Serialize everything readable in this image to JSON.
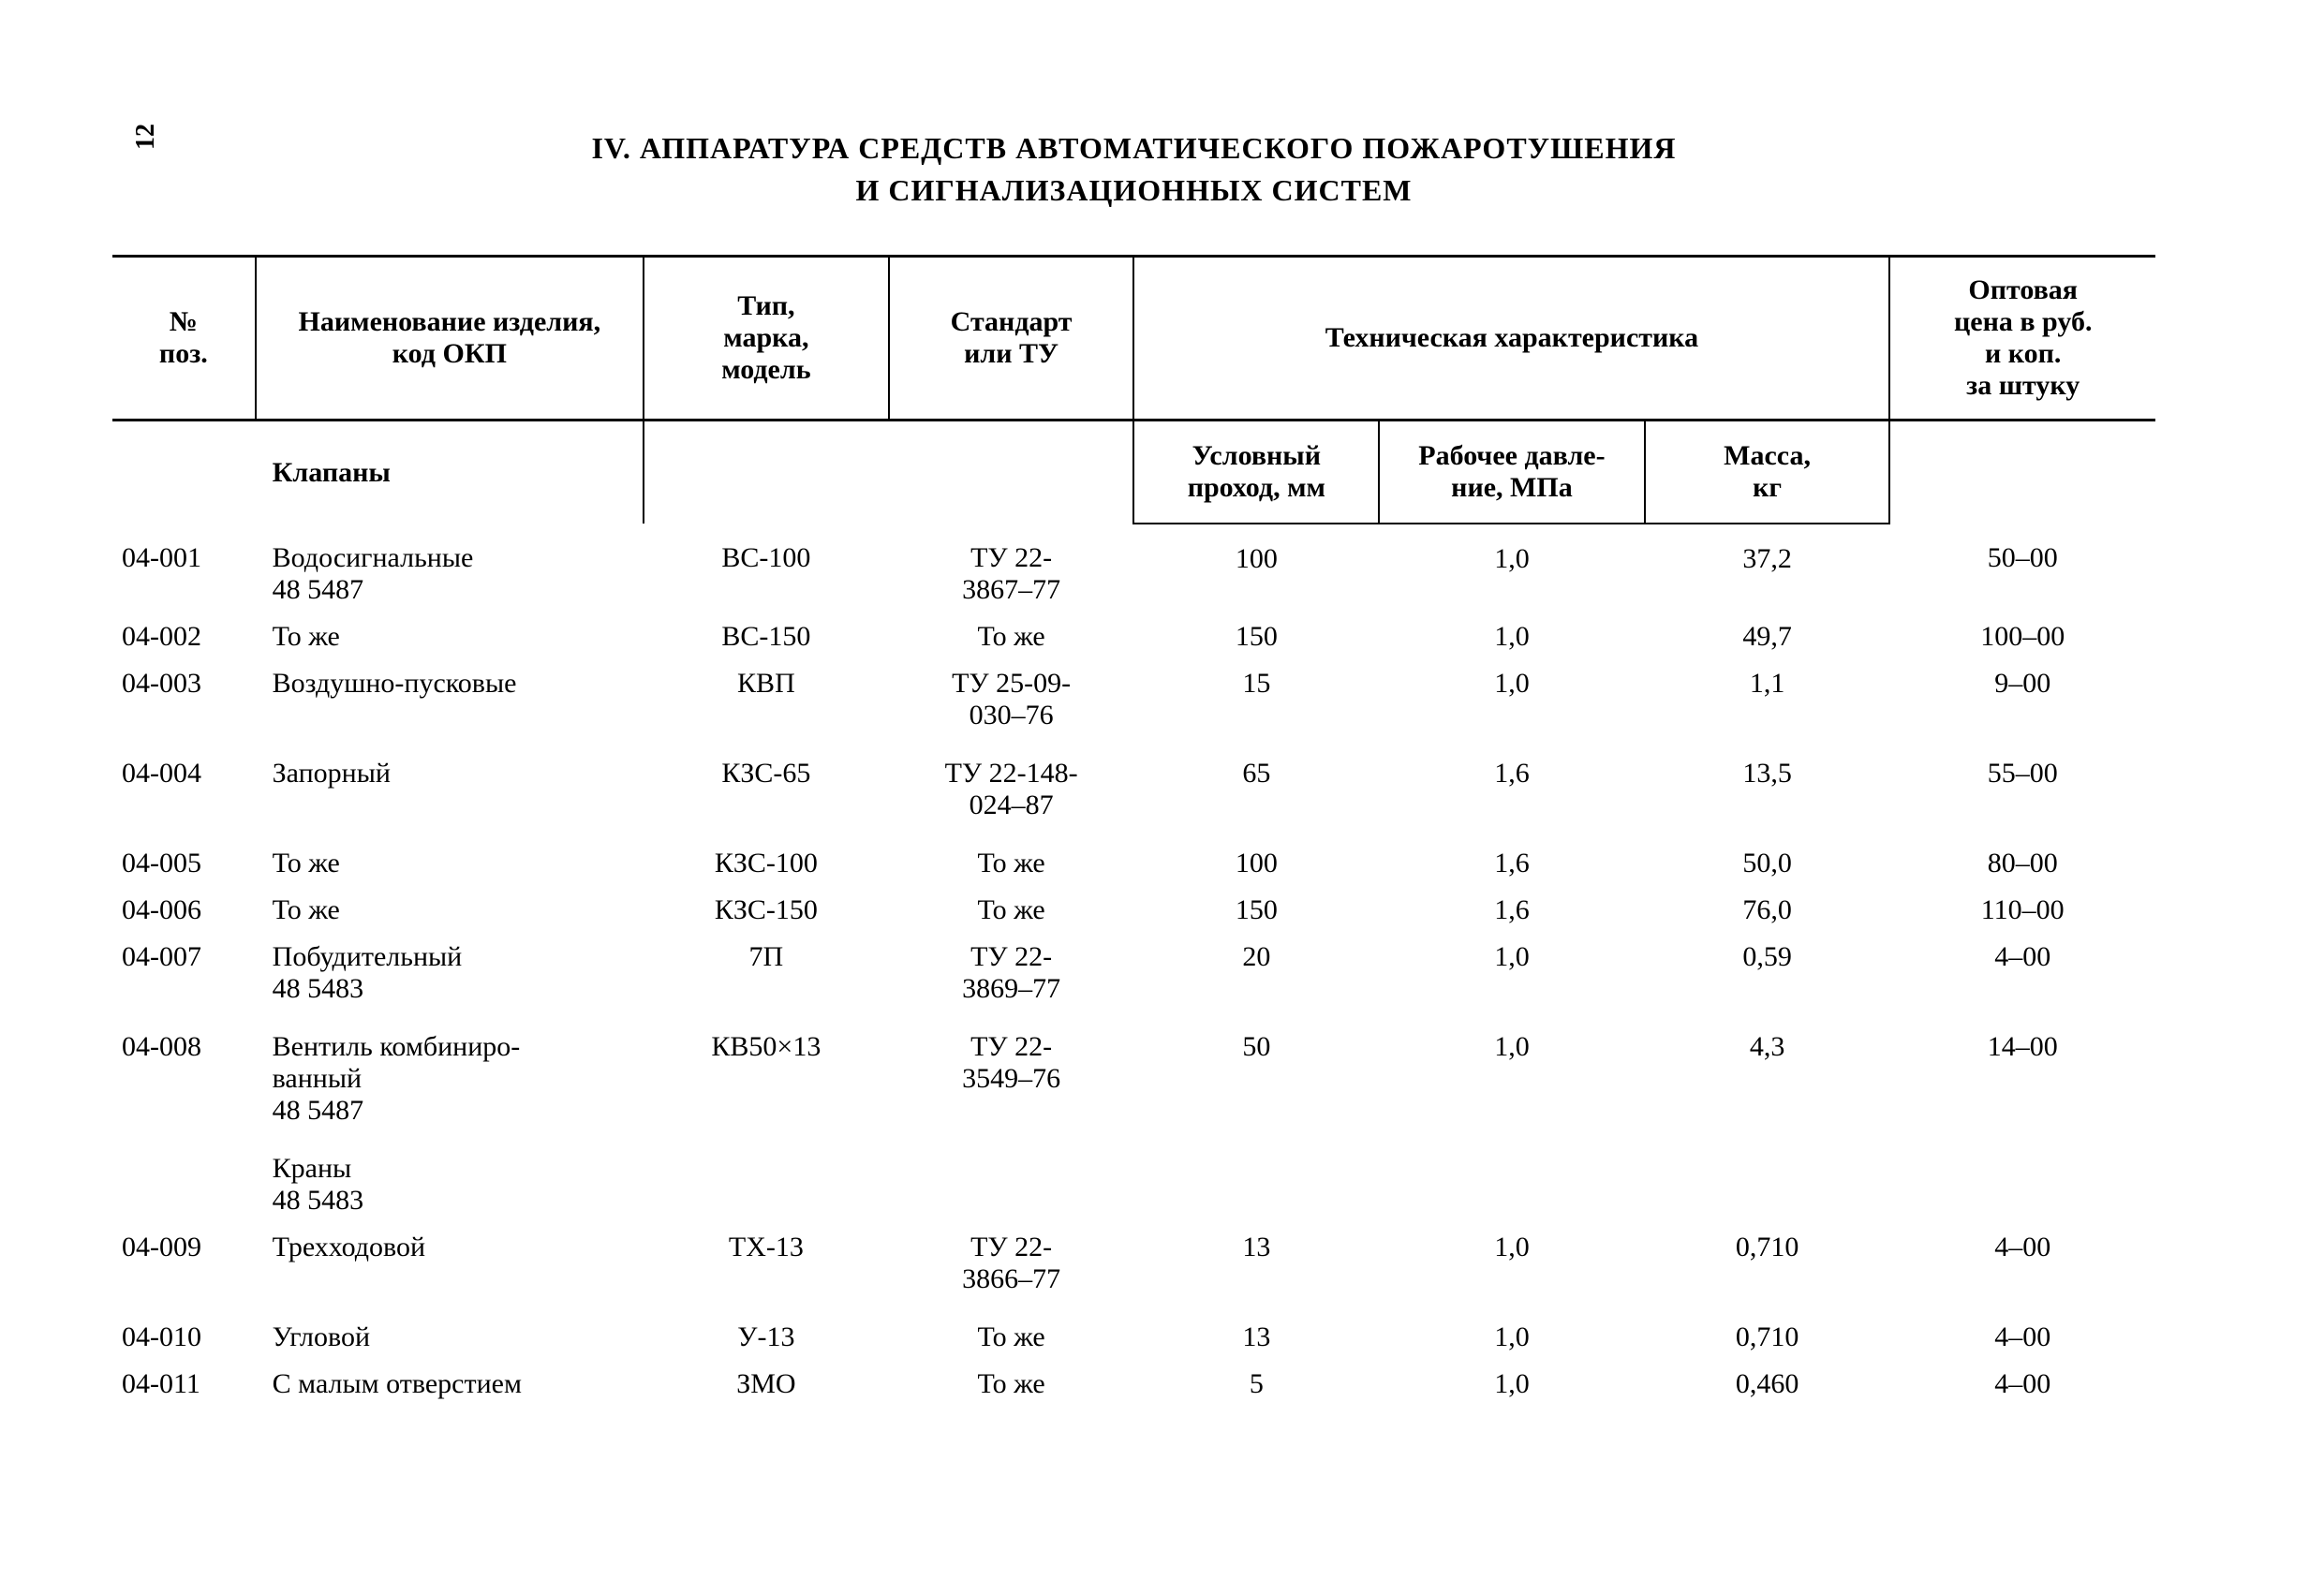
{
  "page_number": "12",
  "title_line1": "IV. АППАРАТУРА СРЕДСТВ АВТОМАТИЧЕСКОГО ПОЖАРОТУШЕНИЯ",
  "title_line2": "И СИГНАЛИЗАЦИОННЫХ СИСТЕМ",
  "columns": {
    "pos": "№\nпоз.",
    "name": "Наименование изделия,\nкод ОКП",
    "type": "Тип,\nмарка,\nмодель",
    "std": "Стандарт\nили ТУ",
    "tech": "Техническая характеристика",
    "price": "Оптовая\nцена в руб.\nи коп.\nза штуку",
    "sub_group": "Клапаны",
    "sub_c1": "Условный\nпроход, мм",
    "sub_c2": "Рабочее давле-\nние, МПа",
    "sub_c3": "Масса,\nкг"
  },
  "rows": [
    {
      "pos": "04-001",
      "name": "Водосигнальные\n48 5487",
      "type": "ВС-100",
      "std": "ТУ 22-\n3867–77",
      "c1": "100",
      "c2": "1,0",
      "c3": "37,2",
      "price": "50–00",
      "spacer": true
    },
    {
      "pos": "04-002",
      "name": "То же",
      "type": "ВС-150",
      "std": "То же",
      "c1": "150",
      "c2": "1,0",
      "c3": "49,7",
      "price": "100–00"
    },
    {
      "pos": "04-003",
      "name": "Воздушно-пусковые",
      "type": "КВП",
      "std": "ТУ 25-09-\n030–76",
      "c1": "15",
      "c2": "1,0",
      "c3": "1,1",
      "price": "9–00"
    },
    {
      "pos": "04-004",
      "name": "Запорный",
      "type": "КЗС-65",
      "std": "ТУ 22-148-\n024–87",
      "c1": "65",
      "c2": "1,6",
      "c3": "13,5",
      "price": "55–00",
      "spacer": true
    },
    {
      "pos": "04-005",
      "name": "То же",
      "type": "КЗС-100",
      "std": "То же",
      "c1": "100",
      "c2": "1,6",
      "c3": "50,0",
      "price": "80–00",
      "spacer": true
    },
    {
      "pos": "04-006",
      "name": "То же",
      "type": "КЗС-150",
      "std": "То же",
      "c1": "150",
      "c2": "1,6",
      "c3": "76,0",
      "price": "110–00"
    },
    {
      "pos": "04-007",
      "name": "Побудительный\n48 5483",
      "type": "7П",
      "std": "ТУ 22-\n3869–77",
      "c1": "20",
      "c2": "1,0",
      "c3": "0,59",
      "price": "4–00"
    },
    {
      "pos": "04-008",
      "name": "Вентиль комбиниро-\nванный\n48 5487",
      "type": "КВ50×13",
      "std": "ТУ 22-\n3549–76",
      "c1": "50",
      "c2": "1,0",
      "c3": "4,3",
      "price": "14–00",
      "spacer": true
    },
    {
      "group": "Краны\n48 5483"
    },
    {
      "pos": "04-009",
      "name": "Трехходовой",
      "type": "ТХ-13",
      "std": "ТУ 22-\n3866–77",
      "c1": "13",
      "c2": "1,0",
      "c3": "0,710",
      "price": "4–00"
    },
    {
      "pos": "04-010",
      "name": "Угловой",
      "type": "У-13",
      "std": "То же",
      "c1": "13",
      "c2": "1,0",
      "c3": "0,710",
      "price": "4–00",
      "spacer": true
    },
    {
      "pos": "04-011",
      "name": "С малым отверстием",
      "type": "ЗМО",
      "std": "То же",
      "c1": "5",
      "c2": "1,0",
      "c3": "0,460",
      "price": "4–00"
    }
  ]
}
